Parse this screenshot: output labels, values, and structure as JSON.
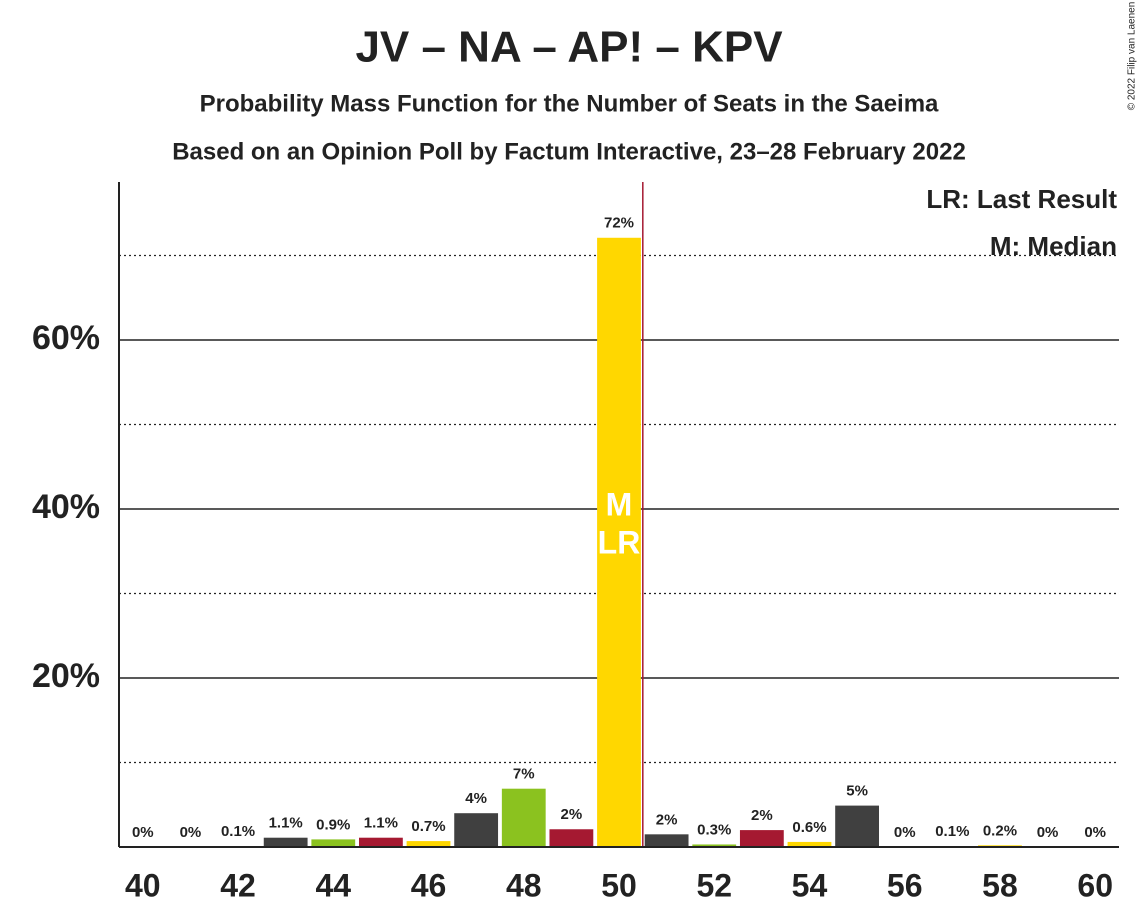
{
  "chart_data": {
    "type": "bar",
    "title": "JV – NA – AP! – KPV",
    "subtitle": "Probability Mass Function for the Number of Seats in the Saeima",
    "subtitle2": "Based on an Opinion Poll by Factum Interactive, 23–28 February 2022",
    "copyright": "© 2022 Filip van Laenen",
    "x": [
      40,
      41,
      42,
      43,
      44,
      45,
      46,
      47,
      48,
      49,
      50,
      51,
      52,
      53,
      54,
      55,
      56,
      57,
      58,
      59,
      60
    ],
    "values": [
      0,
      0,
      0.1,
      1.1,
      0.9,
      1.1,
      0.7,
      4,
      6.9,
      2.1,
      72.1,
      1.5,
      0.3,
      2,
      0.6,
      4.9,
      0,
      0.1,
      0.2,
      0,
      0
    ],
    "value_labels": [
      "0%",
      "0%",
      "0.1%",
      "1.1%",
      "0.9%",
      "1.1%",
      "0.7%",
      "4%",
      "7%",
      "2%",
      "72%",
      "2%",
      "0.3%",
      "2%",
      "0.6%",
      "5%",
      "0%",
      "0.1%",
      "0.2%",
      "0%",
      "0%"
    ],
    "colors": [
      "#8bc21f",
      "#a51931",
      "#ffd700",
      "#404040",
      "#8bc21f",
      "#a51931",
      "#ffd700",
      "#404040",
      "#8bc21f",
      "#a51931",
      "#ffd700",
      "#404040",
      "#8bc21f",
      "#a51931",
      "#ffd700",
      "#404040",
      "#8bc21f",
      "#a51931",
      "#ffd700",
      "#404040",
      "#8bc21f"
    ],
    "xlim": [
      39.5,
      60.5
    ],
    "xticks": [
      40,
      42,
      44,
      46,
      48,
      50,
      52,
      54,
      56,
      58,
      60
    ],
    "ylim": [
      0,
      78.7
    ],
    "yticks": [
      {
        "value": 20,
        "label": "20%"
      },
      {
        "value": 40,
        "label": "40%"
      },
      {
        "value": 60,
        "label": "60%"
      }
    ],
    "minor_yticks": [
      10,
      30,
      50,
      70
    ],
    "median": 50,
    "median_label": "M",
    "last_result": 50,
    "last_result_label": "LR",
    "last_result_color": "#a51931",
    "legend": [
      "LR: Last Result",
      "M: Median"
    ]
  }
}
